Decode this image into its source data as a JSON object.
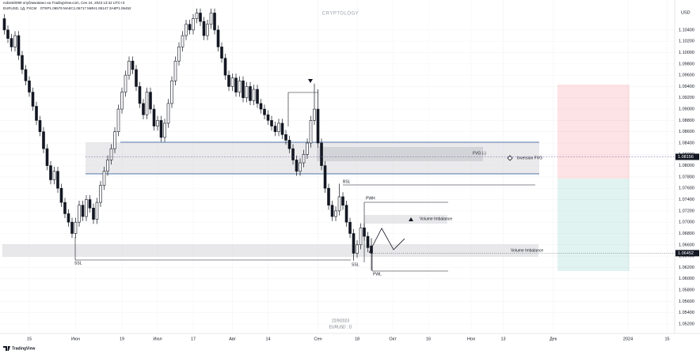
{
  "chart_data": {
    "type": "candlestick",
    "title": "nobest0099 опубликовано на TradingView.com, Сен 24, 2023 13:42 UTC+3",
    "symbol": "EURUSD, 1Д, FXCM",
    "ohlc_labels": [
      "ОТКР",
      "МАКС",
      "МИН",
      "ЗАКР"
    ],
    "watermark": "CRYPTOLOGY",
    "currency": "USD",
    "date_stamp": "22/9/2023",
    "symbol_stamp": "EURUSD : D",
    "brand": "TradingView",
    "annotations": [
      "FVG (-)",
      "Inversion FVG",
      "BSL",
      "PWH",
      "Volume Imbalance",
      "Volume Imbalance",
      "SSL",
      "SSL",
      "PWL"
    ],
    "fvg_level": 1.08156,
    "up_color": "#ffffff",
    "down_color": "#131722",
    "grid": true,
    "xlim": [
      -8.22,
      181.1
    ],
    "ylim": [
      1.0499,
      1.1079
    ],
    "xticks": [
      {
        "value": 0,
        "label": "15"
      },
      {
        "value": 13,
        "label": "Июн"
      },
      {
        "value": 26,
        "label": "19"
      },
      {
        "value": 36,
        "label": "Июл"
      },
      {
        "value": 46,
        "label": "17"
      },
      {
        "value": 57,
        "label": "Авг"
      },
      {
        "value": 67,
        "label": "14"
      },
      {
        "value": 81,
        "label": "Сен"
      },
      {
        "value": 92,
        "label": "18"
      },
      {
        "value": 102,
        "label": "Окт"
      },
      {
        "value": 112,
        "label": "16"
      },
      {
        "value": 124,
        "label": "Ноя"
      },
      {
        "value": 133,
        "label": "13"
      },
      {
        "value": 147,
        "label": "Дек"
      },
      {
        "value": 168,
        "label": "2024"
      },
      {
        "value": 179,
        "label": "15"
      }
    ],
    "yticks": [
      {
        "value": 1.052,
        "label": "1.05200"
      },
      {
        "value": 1.054,
        "label": "1.05400"
      },
      {
        "value": 1.056,
        "label": "1.05600"
      },
      {
        "value": 1.058,
        "label": "1.05800"
      },
      {
        "value": 1.06,
        "label": "1.06000"
      },
      {
        "value": 1.062,
        "label": "1.06200"
      },
      {
        "value": 1.064,
        "label": "1.06400"
      },
      {
        "value": 1.066,
        "label": "1.06600"
      },
      {
        "value": 1.068,
        "label": "1.06800"
      },
      {
        "value": 1.07,
        "label": "1.07000"
      },
      {
        "value": 1.072,
        "label": "1.07200"
      },
      {
        "value": 1.074,
        "label": "1.07400"
      },
      {
        "value": 1.076,
        "label": "1.07600"
      },
      {
        "value": 1.078,
        "label": "1.07800"
      },
      {
        "value": 1.08,
        "label": "1.08000"
      },
      {
        "value": 1.082,
        "label": "1.08200"
      },
      {
        "value": 1.084,
        "label": "1.08400"
      },
      {
        "value": 1.086,
        "label": "1.08600"
      },
      {
        "value": 1.088,
        "label": "1.08800"
      },
      {
        "value": 1.09,
        "label": "1.09000"
      },
      {
        "value": 1.092,
        "label": "1.09200"
      },
      {
        "value": 1.094,
        "label": "1.09400"
      },
      {
        "value": 1.096,
        "label": "1.09600"
      },
      {
        "value": 1.098,
        "label": "1.09800"
      },
      {
        "value": 1.1,
        "label": "1.10000"
      },
      {
        "value": 1.102,
        "label": "1.10200"
      },
      {
        "value": 1.104,
        "label": "1.10400"
      }
    ],
    "x": [
      -7,
      -6,
      -5,
      -4,
      -3,
      -2,
      -1,
      0,
      1,
      2,
      3,
      4,
      5,
      6,
      7,
      8,
      9,
      10,
      11,
      12,
      13,
      14,
      15,
      16,
      17,
      18,
      19,
      20,
      21,
      22,
      23,
      24,
      25,
      26,
      27,
      28,
      29,
      30,
      31,
      32,
      33,
      34,
      35,
      36,
      37,
      38,
      39,
      40,
      41,
      42,
      43,
      44,
      45,
      46,
      47,
      48,
      49,
      50,
      51,
      52,
      53,
      54,
      55,
      56,
      57,
      58,
      59,
      60,
      61,
      62,
      63,
      64,
      65,
      66,
      67,
      68,
      69,
      70,
      71,
      72,
      73,
      74,
      75,
      76,
      77,
      78,
      79,
      80,
      81,
      82,
      83,
      84,
      85,
      86,
      87,
      88,
      89,
      90,
      91,
      92,
      93,
      94,
      95,
      96
    ],
    "ohlc": [
      [
        1.106,
        1.1068,
        1.1032,
        1.104
      ],
      [
        1.104,
        1.1048,
        1.1017,
        1.1025
      ],
      [
        1.1025,
        1.1033,
        1.1002,
        1.101
      ],
      [
        1.101,
        1.1038,
        1.1002,
        1.103
      ],
      [
        1.103,
        1.1038,
        1.0987,
        1.0995
      ],
      [
        1.0995,
        1.1003,
        1.0962,
        1.097
      ],
      [
        1.097,
        1.0978,
        1.0942,
        1.095
      ],
      [
        1.095,
        1.0958,
        1.0922,
        1.093
      ],
      [
        1.093,
        1.0938,
        1.0897,
        1.0905
      ],
      [
        1.0905,
        1.0913,
        1.0872,
        1.088
      ],
      [
        1.088,
        1.0888,
        1.0852,
        1.086
      ],
      [
        1.086,
        1.0868,
        1.0822,
        1.083
      ],
      [
        1.083,
        1.0838,
        1.0792,
        1.08
      ],
      [
        1.08,
        1.0808,
        1.0767,
        1.0775
      ],
      [
        1.0775,
        1.0798,
        1.0767,
        1.079
      ],
      [
        1.079,
        1.0798,
        1.0752,
        1.076
      ],
      [
        1.076,
        1.0768,
        1.0727,
        1.0735
      ],
      [
        1.0735,
        1.0743,
        1.0707,
        1.0715
      ],
      [
        1.0715,
        1.0723,
        1.0692,
        1.07
      ],
      [
        1.07,
        1.0708,
        1.0672,
        1.068
      ],
      [
        1.068,
        1.0708,
        1.0672,
        1.07
      ],
      [
        1.07,
        1.0738,
        1.0692,
        1.073
      ],
      [
        1.073,
        1.0738,
        1.0702,
        1.071
      ],
      [
        1.071,
        1.0748,
        1.0702,
        1.074
      ],
      [
        1.074,
        1.0748,
        1.0717,
        1.0725
      ],
      [
        1.0725,
        1.0733,
        1.0697,
        1.0705
      ],
      [
        1.0705,
        1.0743,
        1.0697,
        1.0735
      ],
      [
        1.0735,
        1.0773,
        1.0727,
        1.0765
      ],
      [
        1.0765,
        1.0798,
        1.0757,
        1.079
      ],
      [
        1.079,
        1.0818,
        1.0782,
        1.081
      ],
      [
        1.081,
        1.0838,
        1.0802,
        1.083
      ],
      [
        1.083,
        1.0868,
        1.0822,
        1.086
      ],
      [
        1.086,
        1.0908,
        1.0852,
        1.09
      ],
      [
        1.09,
        1.0938,
        1.0892,
        1.093
      ],
      [
        1.093,
        1.0968,
        1.0922,
        1.096
      ],
      [
        1.096,
        1.0993,
        1.0952,
        1.0985
      ],
      [
        1.0985,
        1.0993,
        1.0962,
        1.097
      ],
      [
        1.097,
        1.0978,
        1.0932,
        1.094
      ],
      [
        1.094,
        1.0948,
        1.0902,
        1.091
      ],
      [
        1.091,
        1.0918,
        1.0882,
        1.089
      ],
      [
        1.089,
        1.0938,
        1.0882,
        1.093
      ],
      [
        1.093,
        1.0938,
        1.0892,
        1.09
      ],
      [
        1.09,
        1.0908,
        1.0862,
        1.087
      ],
      [
        1.087,
        1.0888,
        1.0862,
        1.088
      ],
      [
        1.088,
        1.0888,
        1.0842,
        1.085
      ],
      [
        1.085,
        1.0883,
        1.0842,
        1.0875
      ],
      [
        1.0875,
        1.0918,
        1.0867,
        1.091
      ],
      [
        1.091,
        1.0958,
        1.0902,
        1.095
      ],
      [
        1.095,
        1.0993,
        1.0942,
        1.0985
      ],
      [
        1.0985,
        1.1018,
        1.0977,
        1.101
      ],
      [
        1.101,
        1.1038,
        1.1002,
        1.103
      ],
      [
        1.103,
        1.1058,
        1.1022,
        1.105
      ],
      [
        1.105,
        1.1058,
        1.1032,
        1.104
      ],
      [
        1.104,
        1.1068,
        1.1032,
        1.106
      ],
      [
        1.106,
        1.1078,
        1.1052,
        1.107
      ],
      [
        1.107,
        1.1078,
        1.1047,
        1.1055
      ],
      [
        1.1055,
        1.1063,
        1.1022,
        1.103
      ],
      [
        1.103,
        1.1058,
        1.1022,
        1.105
      ],
      [
        1.105,
        1.1078,
        1.1042,
        1.107
      ],
      [
        1.107,
        1.1078,
        1.1032,
        1.104
      ],
      [
        1.104,
        1.1048,
        1.1002,
        1.101
      ],
      [
        1.101,
        1.1018,
        1.0982,
        1.099
      ],
      [
        1.099,
        1.0998,
        1.0952,
        1.096
      ],
      [
        1.096,
        1.0968,
        1.0932,
        1.094
      ],
      [
        1.094,
        1.0963,
        1.0932,
        1.0955
      ],
      [
        1.0955,
        1.0963,
        1.0922,
        1.093
      ],
      [
        1.093,
        1.0958,
        1.0922,
        1.095
      ],
      [
        1.095,
        1.0958,
        1.0912,
        1.092
      ],
      [
        1.092,
        1.0948,
        1.0912,
        1.094
      ],
      [
        1.094,
        1.0948,
        1.0907,
        1.0915
      ],
      [
        1.0915,
        1.0943,
        1.0907,
        1.0935
      ],
      [
        1.0935,
        1.0943,
        1.0902,
        1.091
      ],
      [
        1.091,
        1.0918,
        1.0892,
        1.09
      ],
      [
        1.09,
        1.0908,
        1.0882,
        1.089
      ],
      [
        1.089,
        1.0898,
        1.0872,
        1.088
      ],
      [
        1.088,
        1.0888,
        1.0862,
        1.087
      ],
      [
        1.087,
        1.0878,
        1.0852,
        1.086
      ],
      [
        1.086,
        1.0883,
        1.0852,
        1.0875
      ],
      [
        1.0875,
        1.0883,
        1.0847,
        1.0855
      ],
      [
        1.0855,
        1.0863,
        1.0837,
        1.0845
      ],
      [
        1.0845,
        1.0853,
        1.0822,
        1.083
      ],
      [
        1.083,
        1.0838,
        1.0802,
        1.081
      ],
      [
        1.081,
        1.0818,
        1.0782,
        1.079
      ],
      [
        1.079,
        1.0813,
        1.0782,
        1.0805
      ],
      [
        1.0805,
        1.0828,
        1.0797,
        1.082
      ],
      [
        1.082,
        1.0848,
        1.0812,
        1.084
      ],
      [
        1.084,
        1.0888,
        1.0832,
        1.088
      ],
      [
        1.088,
        1.0945,
        1.0872,
        1.09
      ],
      [
        1.09,
        1.0935,
        1.0832,
        1.084
      ],
      [
        1.084,
        1.0848,
        1.0792,
        1.08
      ],
      [
        1.08,
        1.0808,
        1.0752,
        1.076
      ],
      [
        1.076,
        1.0768,
        1.0722,
        1.073
      ],
      [
        1.073,
        1.0738,
        1.0702,
        1.071
      ],
      [
        1.071,
        1.0728,
        1.0702,
        1.072
      ],
      [
        1.072,
        1.0768,
        1.0712,
        1.0745
      ],
      [
        1.0745,
        1.0753,
        1.0722,
        1.073
      ],
      [
        1.073,
        1.0738,
        1.0692,
        1.07
      ],
      [
        1.07,
        1.0708,
        1.0672,
        1.068
      ],
      [
        1.068,
        1.0688,
        1.0632,
        1.0645
      ],
      [
        1.0645,
        1.0668,
        1.0637,
        1.066
      ],
      [
        1.066,
        1.0698,
        1.0652,
        1.069
      ],
      [
        1.069,
        1.0698,
        1.0667,
        1.0675
      ],
      [
        1.0675,
        1.0683,
        1.0647,
        1.0655
      ],
      [
        1.06579,
        1.06717,
        1.06147,
        1.06452
      ]
    ]
  }
}
